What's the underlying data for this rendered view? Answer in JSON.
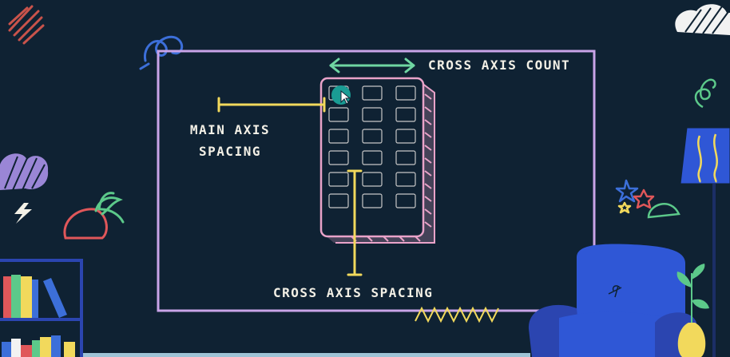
{
  "diagram": {
    "labels": {
      "cross_axis_count": "CROSS AXIS COUNT",
      "main_axis_spacing_line1": "MAIN AXIS",
      "main_axis_spacing_line2": "SPACING",
      "cross_axis_spacing": "CROSS AXIS SPACING"
    },
    "grid": {
      "columns": 3,
      "rows": 6
    },
    "colors": {
      "background": "#0f2233",
      "frame": "#c9a4e8",
      "phone": "#e9a3c9",
      "cell": "#c7c7c7",
      "arrow_green": "#6fd6a2",
      "spacing_yellow": "#f2d95c",
      "cursor_teal": "#1a9c94",
      "chair_blue": "#2f57d6",
      "lamp_blue": "#2f57d6"
    }
  }
}
